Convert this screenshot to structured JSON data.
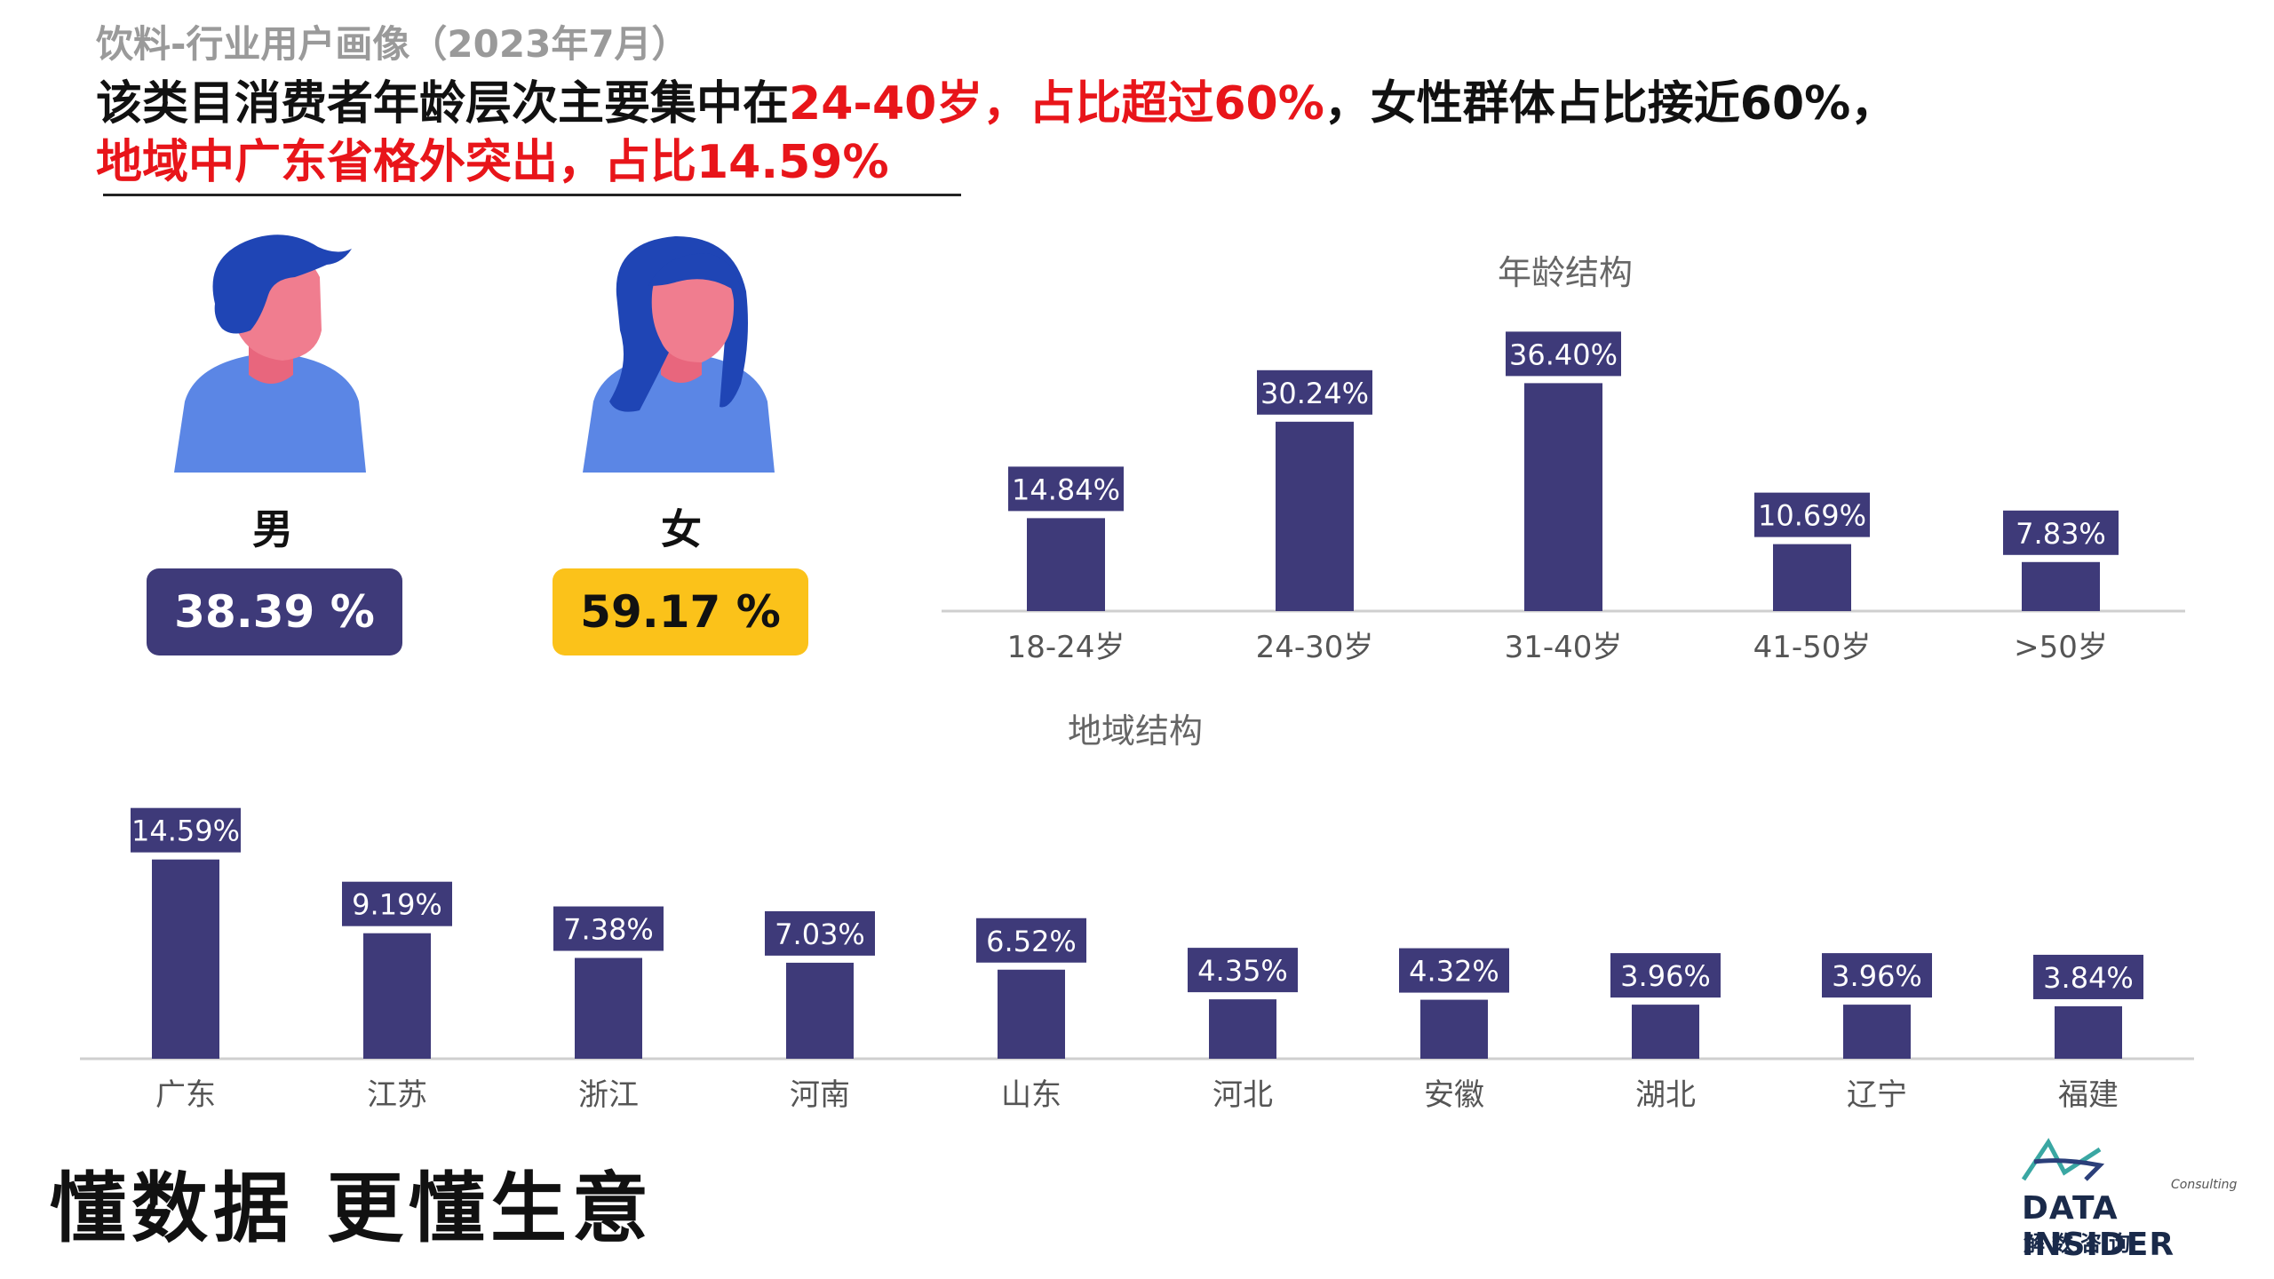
{
  "header": {
    "subtitle": "饮料-行业用户画像（2023年7月）",
    "headline_part1": "该类目消费者年龄层次主要集中在",
    "headline_part2_red": "24-40岁，占比超过60%",
    "headline_part3": "，女性群体占比接近60%，",
    "headline_part4_red": "地域中广东省格外突出，占比14.59%"
  },
  "gender": {
    "male": {
      "label": "男",
      "value": "38.39 %",
      "badge_color": "#3e3a79"
    },
    "female": {
      "label": "女",
      "value": "59.17 %",
      "badge_color": "#fbc21a"
    }
  },
  "colors": {
    "bar": "#3e3a79",
    "headline_red": "#e8151a",
    "person_blue": "#5b86e5",
    "face_pink": "#f07d8f",
    "hair_blue": "#1f45b5"
  },
  "chart_data": [
    {
      "type": "bar",
      "title": "年龄结构",
      "categories": [
        "18-24岁",
        "24-30岁",
        "31-40岁",
        "41-50岁",
        ">50岁"
      ],
      "values": [
        14.84,
        30.24,
        36.4,
        10.69,
        7.83
      ],
      "value_labels": [
        "14.84%",
        "30.24%",
        "36.40%",
        "10.69%",
        "7.83%"
      ],
      "unit": "%",
      "ylim": [
        0,
        40
      ],
      "grid": false
    },
    {
      "type": "bar",
      "title": "地域结构",
      "categories": [
        "广东",
        "江苏",
        "浙江",
        "河南",
        "山东",
        "河北",
        "安徽",
        "湖北",
        "辽宁",
        "福建"
      ],
      "values": [
        14.59,
        9.19,
        7.38,
        7.03,
        6.52,
        4.35,
        4.32,
        3.96,
        3.96,
        3.84
      ],
      "value_labels": [
        "14.59%",
        "9.19%",
        "7.38%",
        "7.03%",
        "6.52%",
        "4.35%",
        "4.32%",
        "3.96%",
        "3.96%",
        "3.84%"
      ],
      "unit": "%",
      "ylim": [
        0,
        16
      ],
      "grid": false
    }
  ],
  "footer": {
    "slogan": "懂数据 更懂生意",
    "logo_name": "DATA INSIDER",
    "logo_sub": "解数咨询",
    "logo_consulting": "Consulting"
  }
}
